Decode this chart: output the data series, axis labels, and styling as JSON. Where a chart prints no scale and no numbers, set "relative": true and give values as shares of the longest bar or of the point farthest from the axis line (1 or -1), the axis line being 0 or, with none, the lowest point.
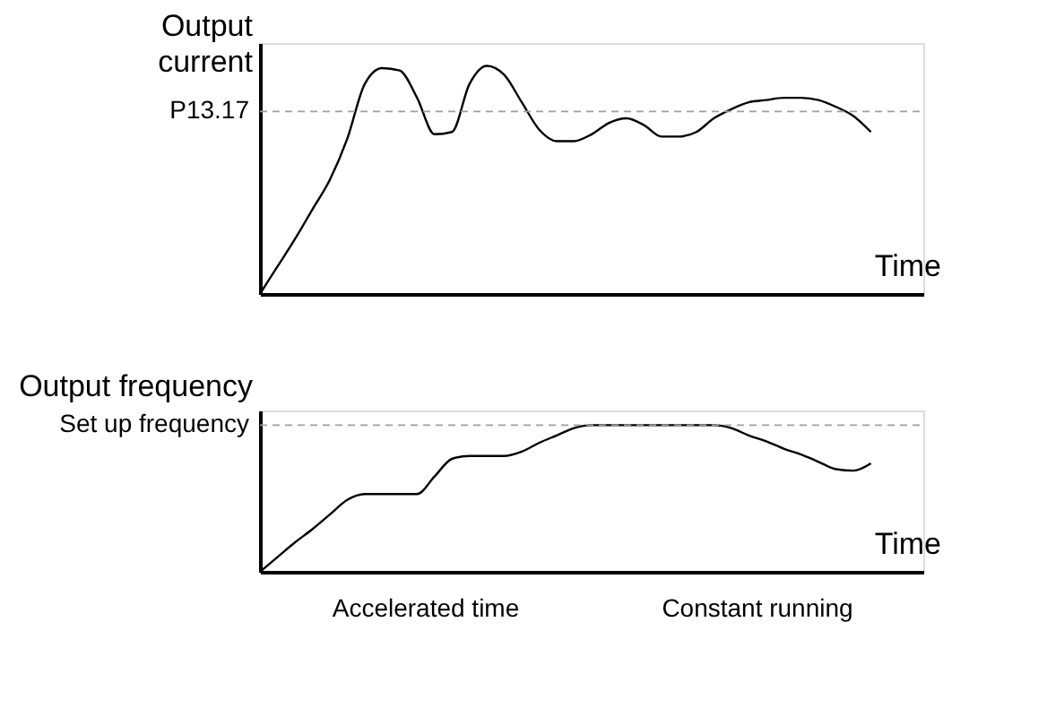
{
  "chart_data": [
    {
      "type": "line",
      "relative": true,
      "ylabel": "Output current",
      "xlabel": "Time",
      "grid": false,
      "tick_labels": false,
      "line_style": "solid",
      "marker": "none",
      "categories": [
        null,
        null,
        null,
        null,
        null,
        null,
        null,
        null,
        null,
        null,
        null,
        null,
        null,
        null,
        null,
        null,
        null,
        null,
        null,
        null,
        null,
        null,
        null,
        null,
        null,
        null,
        null,
        null,
        null,
        null,
        null,
        null,
        null,
        null,
        null,
        null,
        null,
        null,
        null
      ],
      "series": [
        {
          "color": "#000000",
          "values": [
            0,
            0.12,
            0.24,
            0.37,
            0.5,
            0.68,
            0.92,
            0.99,
            0.98,
            0.86,
            0.7,
            0.71,
            0.92,
            1.0,
            0.96,
            0.84,
            0.72,
            0.67,
            0.67,
            0.7,
            0.75,
            0.77,
            0.74,
            0.69,
            0.69,
            0.71,
            0.77,
            0.81,
            0.84,
            0.85,
            0.86,
            0.86,
            0.85,
            0.82,
            0.78,
            0.71,
            null,
            null,
            null
          ]
        }
      ],
      "ref_lines": [
        {
          "axis": "y",
          "value": 0.8,
          "label": "P13.17",
          "color": "#a0a0a0",
          "line_style": "dashed"
        }
      ]
    },
    {
      "type": "line",
      "relative": true,
      "ylabel": "Output frequency",
      "xlabel": "Time",
      "grid": false,
      "tick_labels": false,
      "line_style": "solid",
      "marker": "none",
      "categories": [
        null,
        null,
        null,
        null,
        null,
        null,
        null,
        null,
        null,
        null,
        null,
        null,
        null,
        null,
        null,
        null,
        null,
        null,
        null,
        null,
        null,
        null,
        null,
        null,
        null,
        null,
        null,
        null,
        null,
        null,
        null,
        null,
        null,
        null,
        null,
        null,
        null,
        null,
        null
      ],
      "series": [
        {
          "color": "#000000",
          "values": [
            0,
            0.1,
            0.2,
            0.29,
            0.39,
            0.49,
            0.53,
            0.53,
            0.53,
            0.53,
            0.65,
            0.77,
            0.79,
            0.79,
            0.79,
            0.82,
            0.88,
            0.93,
            0.98,
            1,
            1,
            1,
            1,
            1,
            1,
            1,
            1,
            0.98,
            0.93,
            0.89,
            0.84,
            0.8,
            0.75,
            0.7,
            0.69,
            0.74,
            null,
            null,
            null
          ]
        }
      ],
      "ref_lines": [
        {
          "axis": "y",
          "value": 1,
          "label": "Set up frequency",
          "color": "#a0a0a0",
          "line_style": "dashed"
        }
      ],
      "annotations": [
        "Accelerated time",
        "Constant running"
      ]
    }
  ]
}
